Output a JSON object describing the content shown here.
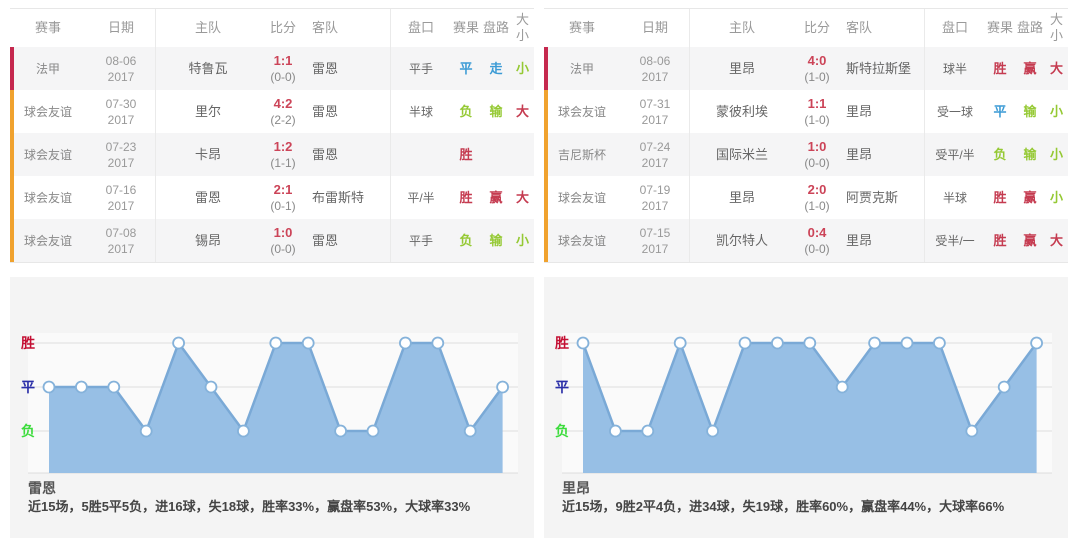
{
  "palette": {
    "red": "#c53b50",
    "blue": "#3b9bd5",
    "green": "#95c934",
    "score_red": "#cc4458",
    "score_half_gray": "#888888",
    "stripe_league": "#c5284e",
    "stripe_friendly": "#f0a22e",
    "axis_win": "#c40f33",
    "axis_draw": "#2b2fa8",
    "axis_loss": "#3ddc3d",
    "chart_fill": "#97bfe5",
    "chart_line": "#7aa9d6",
    "marker_stroke": "#85b2da",
    "grid_line": "#dddddd",
    "panel_bg": "#f4f4f4"
  },
  "tables": [
    {
      "headers": [
        "赛事",
        "日期",
        "主队",
        "比分",
        "客队",
        "盘口",
        "赛果",
        "盘路",
        "大小"
      ],
      "rows": [
        {
          "event": "法甲",
          "stripe": "league",
          "date_line1": "08-06",
          "date_line2": "2017",
          "home": "特鲁瓦",
          "score": "1:1",
          "half_score": "(0-0)",
          "away": "雷恩",
          "handicap": "平手",
          "result": "平",
          "result_cls": "blue",
          "road": "走",
          "road_cls": "blue",
          "size": "小",
          "size_cls": "green"
        },
        {
          "event": "球会友谊",
          "stripe": "friendly",
          "date_line1": "07-30",
          "date_line2": "2017",
          "home": "里尔",
          "score": "4:2",
          "half_score": "(2-2)",
          "away": "雷恩",
          "handicap": "半球",
          "result": "负",
          "result_cls": "green",
          "road": "输",
          "road_cls": "green",
          "size": "大",
          "size_cls": "red"
        },
        {
          "event": "球会友谊",
          "stripe": "friendly",
          "date_line1": "07-23",
          "date_line2": "2017",
          "home": "卡昂",
          "score": "1:2",
          "half_score": "(1-1)",
          "away": "雷恩",
          "handicap": "",
          "result": "胜",
          "result_cls": "red",
          "road": "",
          "road_cls": "",
          "size": "",
          "size_cls": ""
        },
        {
          "event": "球会友谊",
          "stripe": "friendly",
          "date_line1": "07-16",
          "date_line2": "2017",
          "home": "雷恩",
          "score": "2:1",
          "half_score": "(0-1)",
          "away": "布雷斯特",
          "handicap": "平/半",
          "result": "胜",
          "result_cls": "red",
          "road": "赢",
          "road_cls": "red",
          "size": "大",
          "size_cls": "red"
        },
        {
          "event": "球会友谊",
          "stripe": "friendly",
          "date_line1": "07-08",
          "date_line2": "2017",
          "home": "锡昂",
          "score": "1:0",
          "half_score": "(0-0)",
          "away": "雷恩",
          "handicap": "平手",
          "result": "负",
          "result_cls": "green",
          "road": "输",
          "road_cls": "green",
          "size": "小",
          "size_cls": "green"
        }
      ]
    },
    {
      "headers": [
        "赛事",
        "日期",
        "主队",
        "比分",
        "客队",
        "盘口",
        "赛果",
        "盘路",
        "大小"
      ],
      "rows": [
        {
          "event": "法甲",
          "stripe": "league",
          "date_line1": "08-06",
          "date_line2": "2017",
          "home": "里昂",
          "score": "4:0",
          "half_score": "(1-0)",
          "away": "斯特拉斯堡",
          "handicap": "球半",
          "result": "胜",
          "result_cls": "red",
          "road": "赢",
          "road_cls": "red",
          "size": "大",
          "size_cls": "red"
        },
        {
          "event": "球会友谊",
          "stripe": "friendly",
          "date_line1": "07-31",
          "date_line2": "2017",
          "home": "蒙彼利埃",
          "score": "1:1",
          "half_score": "(1-0)",
          "away": "里昂",
          "handicap": "受一球",
          "result": "平",
          "result_cls": "blue",
          "road": "输",
          "road_cls": "green",
          "size": "小",
          "size_cls": "green"
        },
        {
          "event": "吉尼斯杯",
          "stripe": "friendly",
          "date_line1": "07-24",
          "date_line2": "2017",
          "home": "国际米兰",
          "score": "1:0",
          "half_score": "(0-0)",
          "away": "里昂",
          "handicap": "受平/半",
          "result": "负",
          "result_cls": "green",
          "road": "输",
          "road_cls": "green",
          "size": "小",
          "size_cls": "green"
        },
        {
          "event": "球会友谊",
          "stripe": "friendly",
          "date_line1": "07-19",
          "date_line2": "2017",
          "home": "里昂",
          "score": "2:0",
          "half_score": "(1-0)",
          "away": "阿贾克斯",
          "handicap": "半球",
          "result": "胜",
          "result_cls": "red",
          "road": "赢",
          "road_cls": "red",
          "size": "小",
          "size_cls": "green"
        },
        {
          "event": "球会友谊",
          "stripe": "friendly",
          "date_line1": "07-15",
          "date_line2": "2017",
          "home": "凯尔特人",
          "score": "0:4",
          "half_score": "(0-0)",
          "away": "里昂",
          "handicap": "受半/一",
          "result": "胜",
          "result_cls": "red",
          "road": "赢",
          "road_cls": "red",
          "size": "大",
          "size_cls": "red"
        }
      ]
    }
  ],
  "chart_data": [
    {
      "type": "line",
      "team": "雷恩",
      "axis_labels": [
        "胜",
        "平",
        "负"
      ],
      "x": [
        1,
        2,
        3,
        4,
        5,
        6,
        7,
        8,
        9,
        10,
        11,
        12,
        13,
        14,
        15
      ],
      "results": [
        "平",
        "平",
        "平",
        "负",
        "胜",
        "平",
        "负",
        "胜",
        "胜",
        "负",
        "负",
        "胜",
        "胜",
        "负",
        "平"
      ],
      "summary": "近15场，5胜5平5负，进16球，失18球，胜率33%，赢盘率53%，大球率33%",
      "legend_position": "left",
      "grid": "horizontal"
    },
    {
      "type": "line",
      "team": "里昂",
      "axis_labels": [
        "胜",
        "平",
        "负"
      ],
      "x": [
        1,
        2,
        3,
        4,
        5,
        6,
        7,
        8,
        9,
        10,
        11,
        12,
        13,
        14,
        15
      ],
      "results": [
        "胜",
        "负",
        "负",
        "胜",
        "负",
        "胜",
        "胜",
        "胜",
        "平",
        "胜",
        "胜",
        "胜",
        "负",
        "平",
        "胜"
      ],
      "summary": "近15场，9胜2平4负，进34球，失19球，胜率60%，赢盘率44%，大球率66%",
      "legend_position": "left",
      "grid": "horizontal"
    }
  ]
}
